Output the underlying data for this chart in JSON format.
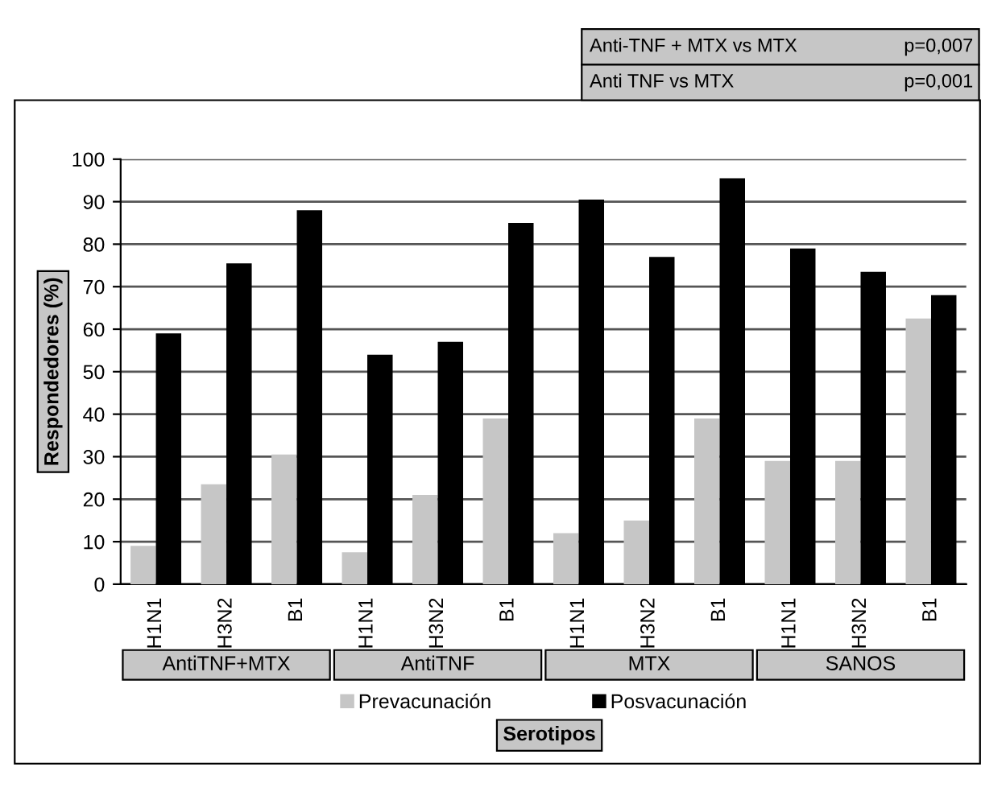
{
  "chart_data": {
    "type": "bar",
    "categories": [
      "H1N1",
      "H3N2",
      "B1",
      "H1N1",
      "H3N2",
      "B1",
      "H1N1",
      "H3N2",
      "B1",
      "H1N1",
      "H3N2",
      "B1"
    ],
    "series": [
      {
        "name": "Prevacunación",
        "color": "#c6c6c6",
        "values": [
          9,
          23.5,
          30.5,
          7.5,
          21,
          39,
          12,
          15,
          39,
          29,
          29,
          62.5
        ]
      },
      {
        "name": "Posvacunación",
        "color": "#000000",
        "values": [
          59,
          75.5,
          88,
          54,
          57,
          85,
          90.5,
          77,
          95.5,
          79,
          73.5,
          68
        ]
      }
    ],
    "xlabel": "Serotipos",
    "ylabel": "Respondedores (%)",
    "ylim": [
      0,
      100
    ],
    "yticks": [
      0,
      10,
      20,
      30,
      40,
      50,
      60,
      70,
      80,
      90,
      100
    ],
    "grid": "y",
    "legend": "bottom",
    "annotations": [
      "AntiTNF+MTX",
      "AntiTNF",
      "MTX",
      "SANOS",
      "Anti-TNF + MTX vs MTX",
      "p=0,007",
      "Anti TNF vs MTX",
      "p=0,001"
    ]
  }
}
